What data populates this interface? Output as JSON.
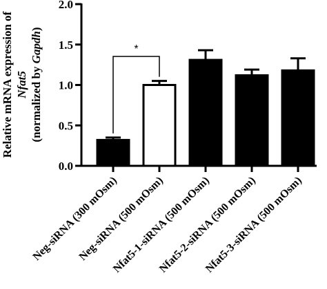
{
  "chart_data": {
    "type": "bar",
    "categories": [
      "Neg-siRNA (300 mOsm)",
      "Neg-siRNA (500 mOsm)",
      "Nfat5-1-siRNA (500 mOsm)",
      "Nfat5-2-siRNA (500 mOsm)",
      "Nfat5-3-siRNA (500 mOsm)"
    ],
    "values": [
      0.32,
      1.0,
      1.31,
      1.12,
      1.18
    ],
    "errors": [
      0.03,
      0.05,
      0.12,
      0.07,
      0.15
    ],
    "bar_fills": [
      "#000000",
      "#ffffff",
      "#000000",
      "#000000",
      "#000000"
    ],
    "ylabel_lines": [
      [
        {
          "text": "Relative mRNA expression of",
          "italic": false
        }
      ],
      [
        {
          "text": "Nfat5",
          "italic": true
        }
      ],
      [
        {
          "text": "(normalized by ",
          "italic": false
        },
        {
          "text": "Gapdh",
          "italic": true
        },
        {
          "text": ")",
          "italic": false
        }
      ]
    ],
    "ylim": [
      0,
      2.0
    ],
    "yticks": [
      0.0,
      0.5,
      1.0,
      1.5,
      2.0
    ],
    "ytick_labels": [
      "0.0",
      "0.5",
      "1.0",
      "1.5",
      "2.0"
    ],
    "grid": false,
    "significance": [
      {
        "from": 0,
        "to": 1,
        "label": "*"
      }
    ]
  }
}
